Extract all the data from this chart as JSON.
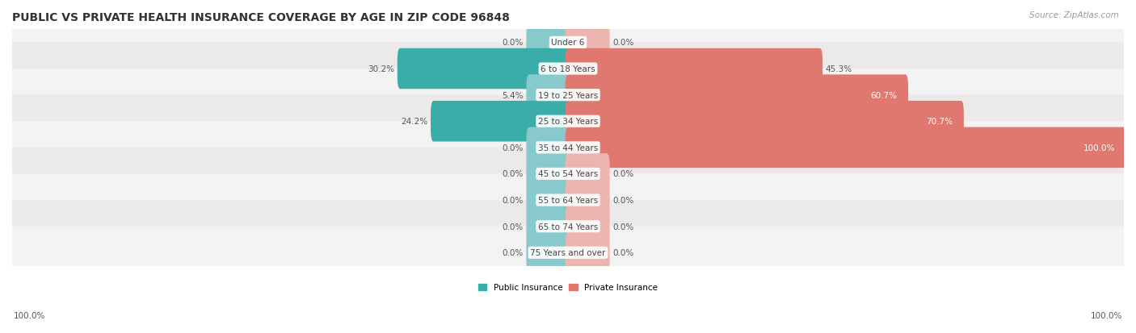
{
  "title": "Public vs Private Health Insurance Coverage by Age in Zip Code 96848",
  "source": "Source: ZipAtlas.com",
  "categories": [
    "Under 6",
    "6 to 18 Years",
    "19 to 25 Years",
    "25 to 34 Years",
    "35 to 44 Years",
    "45 to 54 Years",
    "55 to 64 Years",
    "65 to 74 Years",
    "75 Years and over"
  ],
  "public_values": [
    0.0,
    30.2,
    5.4,
    24.2,
    0.0,
    0.0,
    0.0,
    0.0,
    0.0
  ],
  "private_values": [
    0.0,
    45.3,
    60.7,
    70.7,
    100.0,
    0.0,
    0.0,
    0.0,
    0.0
  ],
  "public_color_dark": "#3AADA8",
  "public_color_light": "#88C9CB",
  "private_color_dark": "#E07870",
  "private_color_light": "#EDB5B0",
  "row_color_light": "#F4F3F3",
  "row_color_dark": "#ECEAE9",
  "max_value": 100.0,
  "min_bar_display": 7.0,
  "legend_public": "Public Insurance",
  "legend_private": "Private Insurance",
  "title_fontsize": 10,
  "label_fontsize": 7.5,
  "category_fontsize": 7.5,
  "source_fontsize": 7.5
}
